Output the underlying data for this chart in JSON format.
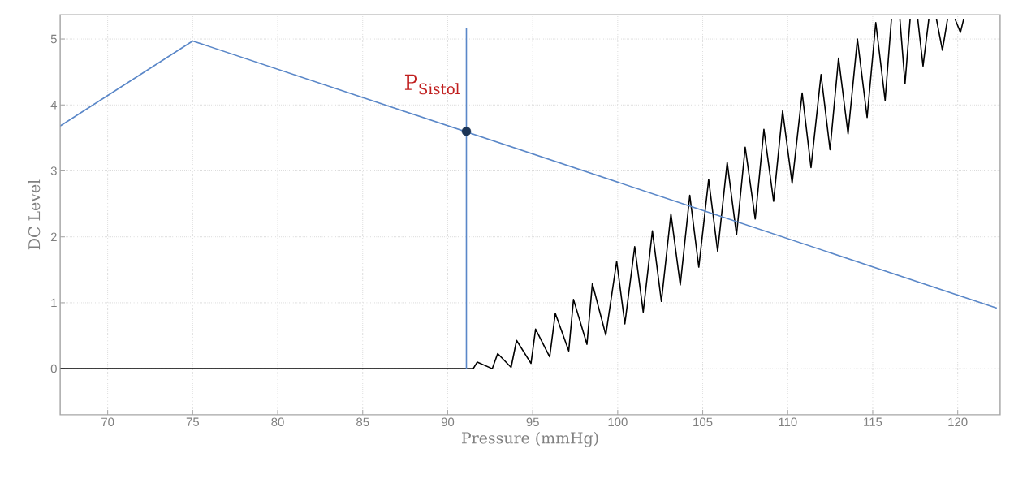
{
  "chart_data": {
    "type": "line",
    "xlabel": "Pressure (mmHg)",
    "ylabel": "DC Level",
    "xlim": [
      67.2,
      122.5
    ],
    "ylim": [
      -0.7,
      5.37
    ],
    "xticks": [
      70,
      75,
      80,
      85,
      90,
      95,
      100,
      105,
      110,
      115,
      120
    ],
    "yticks": [
      0,
      1,
      2,
      3,
      4,
      5
    ],
    "grid": true,
    "line_style": "solid",
    "series": [
      {
        "color": "#000000",
        "x": [
          67.2,
          91.5,
          91.74,
          92.62,
          92.94,
          93.73,
          94.05,
          94.9,
          95.17,
          96.0,
          96.33,
          97.12,
          97.4,
          98.19,
          98.51,
          99.3,
          99.94,
          100.42,
          101.0,
          101.5,
          102.04,
          102.57,
          103.13,
          103.68,
          104.24,
          104.77,
          105.35,
          105.88,
          106.44,
          106.99,
          107.5,
          108.09,
          108.6,
          109.17,
          109.7,
          110.26,
          110.85,
          111.37,
          111.96,
          112.49,
          112.99,
          113.55,
          114.1,
          114.67,
          115.18,
          115.73,
          116.1,
          116.35,
          116.6,
          116.9,
          117.2,
          117.45,
          117.65,
          117.96,
          118.3,
          118.5,
          118.75,
          119.1,
          119.4,
          119.6,
          119.85,
          120.16,
          120.35
        ],
        "values": [
          0,
          0,
          0.1,
          0,
          0.23,
          0.02,
          0.43,
          0.08,
          0.6,
          0.18,
          0.84,
          0.27,
          1.05,
          0.37,
          1.29,
          0.51,
          1.63,
          0.68,
          1.85,
          0.86,
          2.09,
          1.02,
          2.35,
          1.27,
          2.63,
          1.54,
          2.87,
          1.78,
          3.13,
          2.03,
          3.36,
          2.27,
          3.63,
          2.54,
          3.91,
          2.81,
          4.18,
          3.05,
          4.46,
          3.32,
          4.71,
          3.56,
          5.0,
          3.81,
          5.25,
          4.07,
          5.3,
          null,
          5.3,
          4.32,
          5.3,
          null,
          5.3,
          4.59,
          5.3,
          null,
          5.3,
          4.83,
          5.3,
          null,
          5.3,
          5.1,
          5.3
        ]
      },
      {
        "color": "#5a87c8",
        "x": [
          67.2,
          75,
          122.3
        ],
        "values": [
          3.68,
          4.97,
          0.92
        ]
      },
      {
        "color": "#5a87c8",
        "x": [
          91.1,
          91.1
        ],
        "values": [
          0,
          5.16
        ]
      },
      {
        "type": "scatter",
        "color": "#1c3557",
        "marker": "circle",
        "x": [
          91.1
        ],
        "values": [
          3.6
        ]
      }
    ],
    "annotations": [
      {
        "text": "P$_{Sistol}$",
        "x": 91.1,
        "y": 3.6
      }
    ]
  }
}
